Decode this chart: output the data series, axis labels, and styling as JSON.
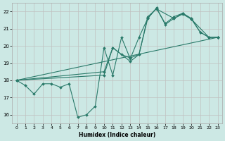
{
  "xlabel": "Humidex (Indice chaleur)",
  "xlim": [
    -0.5,
    23.5
  ],
  "ylim": [
    15.5,
    22.5
  ],
  "yticks": [
    16,
    17,
    18,
    19,
    20,
    21,
    22
  ],
  "xticks": [
    0,
    1,
    2,
    3,
    4,
    5,
    6,
    7,
    8,
    9,
    10,
    11,
    12,
    13,
    14,
    15,
    16,
    17,
    18,
    19,
    20,
    21,
    22,
    23
  ],
  "bg_color": "#cce8e4",
  "grid_color": "#c0c0c0",
  "line_color": "#2a7a6a",
  "series": [
    {
      "x": [
        0,
        1,
        2,
        3,
        4,
        5,
        6,
        7,
        8,
        9,
        10,
        11,
        12,
        13,
        14,
        15,
        16,
        17,
        18,
        19,
        20,
        21,
        22,
        23
      ],
      "y": [
        18.0,
        17.7,
        17.2,
        17.8,
        17.8,
        17.6,
        17.8,
        15.85,
        16.0,
        16.5,
        19.9,
        18.3,
        20.5,
        19.25,
        20.5,
        21.6,
        22.2,
        21.3,
        21.7,
        21.9,
        21.6,
        20.8,
        20.5,
        20.5
      ]
    },
    {
      "x": [
        0,
        10,
        11,
        12,
        13,
        14,
        15,
        16,
        17,
        18,
        19,
        20,
        21,
        22,
        23
      ],
      "y": [
        18.0,
        18.5,
        19.9,
        19.5,
        19.3,
        19.5,
        21.6,
        22.2,
        21.25,
        21.6,
        21.85,
        21.55,
        20.8,
        20.5,
        20.5
      ]
    },
    {
      "x": [
        0,
        23
      ],
      "y": [
        18.0,
        20.5
      ]
    },
    {
      "x": [
        0,
        10,
        11,
        13,
        14,
        15,
        16,
        18,
        19,
        20,
        22,
        23
      ],
      "y": [
        18.0,
        18.3,
        19.9,
        19.1,
        19.5,
        21.7,
        22.15,
        21.6,
        21.9,
        21.55,
        20.5,
        20.5
      ]
    }
  ]
}
